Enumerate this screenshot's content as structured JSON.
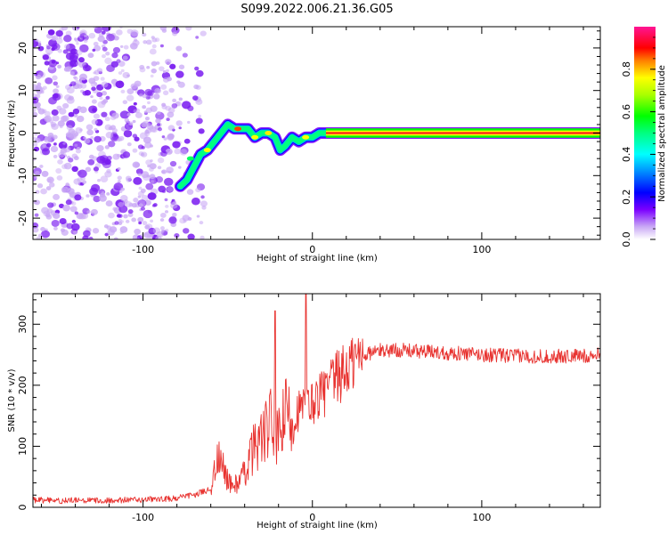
{
  "figure": {
    "title": "S099.2022.006.21.36.G05",
    "colors": {
      "background": "#ffffff",
      "axes": "#000000",
      "snr_line": "#e8322f",
      "spectrum_scatter": "#7a1cf0",
      "spectrum_scatter_light": "#c9a8f5"
    }
  },
  "chart_data": [
    {
      "type": "heatmap",
      "title": "",
      "xlabel": "Height of straight line (km)",
      "ylabel": "Frequency (Hz)",
      "xlim": [
        -165,
        170
      ],
      "ylim": [
        -25,
        25
      ],
      "xticks": [
        -100,
        0,
        100
      ],
      "yticks": [
        -20,
        -10,
        0,
        10,
        20
      ],
      "xtick_labels": [
        "-100",
        "0",
        "100"
      ],
      "ytick_labels": [
        "-20",
        "-10",
        "0",
        "10",
        "20"
      ],
      "colorbar": {
        "label": "Normalized spectral amplitude",
        "range": [
          0,
          1
        ],
        "ticks": [
          0.0,
          0.2,
          0.4,
          0.6,
          0.8
        ],
        "tick_labels": [
          "0.0",
          "0.2",
          "0.4",
          "0.6",
          "0.8"
        ],
        "colormap": "gist_ncar_r",
        "colors": [
          "#ffffff",
          "#7b00ff",
          "#0000ff",
          "#00ffff",
          "#00ff00",
          "#ffff00",
          "#ff0000",
          "#ff1493"
        ]
      },
      "noise_region_x": [
        -165,
        -72
      ],
      "ridge": {
        "x": [
          -78,
          -74,
          -70,
          -66,
          -62,
          -58,
          -54,
          -50,
          -46,
          -42,
          -38,
          -34,
          -30,
          -26,
          -22,
          -19,
          -16,
          -12,
          -8,
          -4,
          0,
          4,
          8,
          12,
          170
        ],
        "y": [
          -12.5,
          -11,
          -8,
          -5,
          -4,
          -2,
          0,
          2,
          1,
          1,
          1,
          -1,
          0,
          0,
          -1,
          -4,
          -3,
          -1,
          -2,
          -1,
          -1,
          0,
          0,
          0,
          0
        ]
      }
    },
    {
      "type": "line",
      "title": "",
      "xlabel": "Height of straight line (km)",
      "ylabel": "SNR (10 * v/v)",
      "xlim": [
        -165,
        170
      ],
      "ylim": [
        0,
        350
      ],
      "xticks": [
        -100,
        0,
        100
      ],
      "yticks": [
        0,
        100,
        200,
        300
      ],
      "xtick_labels": [
        "-100",
        "0",
        "100"
      ],
      "ytick_labels": [
        "0",
        "100",
        "200",
        "300"
      ],
      "series": [
        {
          "x": [
            -165,
            -150,
            -130,
            -110,
            -90,
            -80,
            -70,
            -60,
            -56,
            -52,
            -48,
            -44,
            -40,
            -36,
            -32,
            -28,
            -24,
            -20,
            -16,
            -12,
            -8,
            -4,
            0,
            4,
            8,
            12,
            16,
            20,
            25,
            30,
            40,
            50,
            60,
            80,
            100,
            120,
            140,
            160,
            170
          ],
          "values": [
            12,
            11,
            11,
            12,
            13,
            15,
            20,
            30,
            80,
            60,
            35,
            40,
            55,
            90,
            110,
            120,
            140,
            110,
            150,
            150,
            160,
            165,
            170,
            185,
            190,
            205,
            215,
            225,
            240,
            250,
            257,
            258,
            256,
            253,
            250,
            248,
            247,
            248,
            250
          ],
          "spikes": [
            {
              "x": -22,
              "y": 322
            },
            {
              "x": -4,
              "y": 350
            }
          ]
        }
      ]
    }
  ]
}
